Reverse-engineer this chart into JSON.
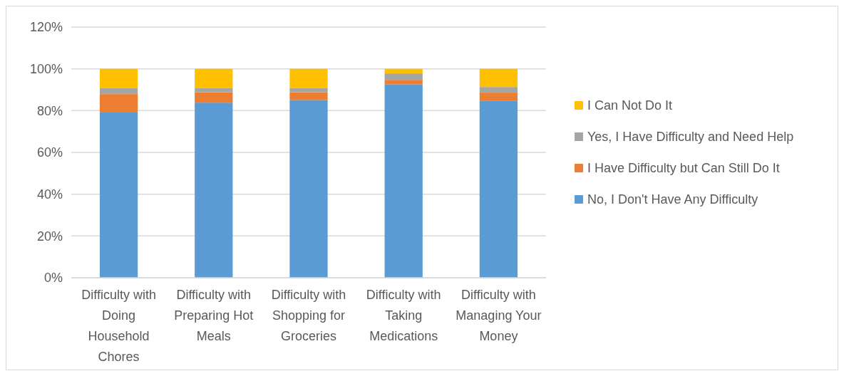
{
  "chart_data": {
    "type": "bar",
    "stacked": true,
    "categories": [
      "Difficulty with Doing Household Chores",
      "Difficulty with Preparing Hot Meals",
      "Difficulty with Shopping for Groceries",
      "Difficulty with Taking Medications",
      "Difficulty with Managing Your Money"
    ],
    "series": [
      {
        "name": "No, I Don't Have Any Difficulty",
        "color": "#5b9bd5",
        "values": [
          79.4,
          83.8,
          85.1,
          92.6,
          84.6
        ]
      },
      {
        "name": "I Have Difficulty but Can Still Do It",
        "color": "#ed7d31",
        "values": [
          8.5,
          5.0,
          3.7,
          2.1,
          4.0
        ]
      },
      {
        "name": "Yes, I Have Difficulty and Need Help",
        "color": "#a5a5a5",
        "values": [
          3.0,
          2.1,
          2.1,
          3.1,
          2.7
        ]
      },
      {
        "name": "I Can Not Do It",
        "color": "#ffc000",
        "values": [
          9.1,
          9.1,
          9.1,
          2.2,
          8.7
        ]
      }
    ],
    "ylim": [
      0,
      120
    ],
    "yticks": [
      {
        "value": 0,
        "label": "0%"
      },
      {
        "value": 20,
        "label": "20%"
      },
      {
        "value": 40,
        "label": "40%"
      },
      {
        "value": 60,
        "label": "60%"
      },
      {
        "value": 80,
        "label": "80%"
      },
      {
        "value": 100,
        "label": "100%"
      },
      {
        "value": 120,
        "label": "120%"
      }
    ],
    "grid": "y",
    "legend": "right"
  }
}
